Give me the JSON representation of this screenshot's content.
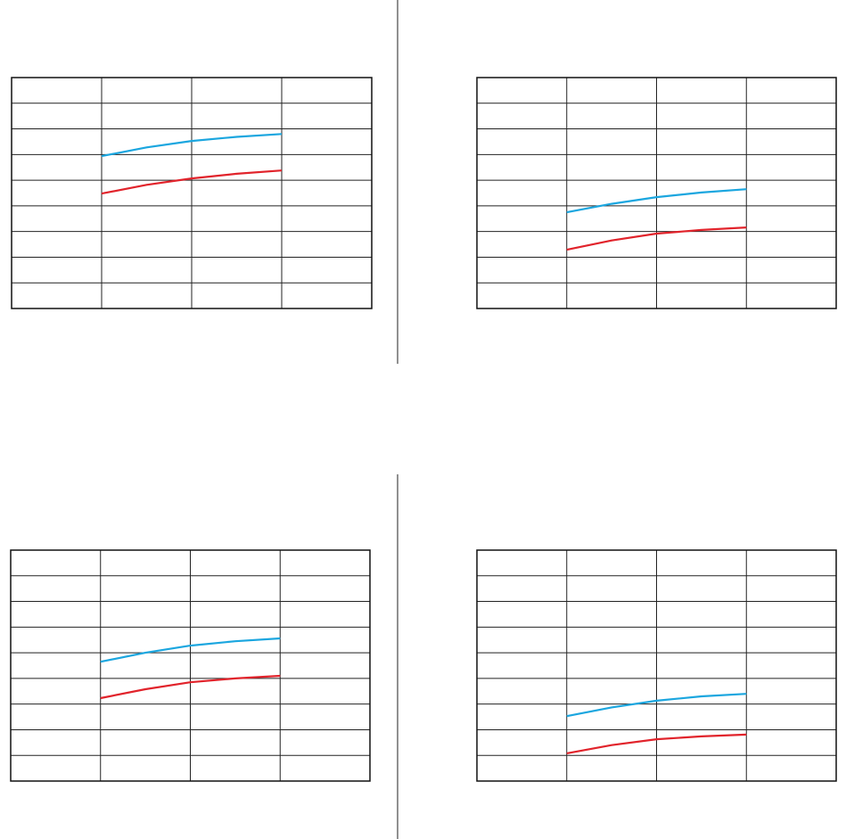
{
  "chart_data": [
    {
      "type": "line",
      "x": [
        1,
        1.5,
        2,
        2.5,
        3
      ],
      "xlim": [
        0,
        4
      ],
      "ylim": [
        0,
        9
      ],
      "xticks": [
        0,
        1,
        2,
        3,
        4
      ],
      "yticks": [
        0,
        1,
        2,
        3,
        4,
        5,
        6,
        7,
        8,
        9
      ],
      "grid": true,
      "series": [
        {
          "color": "#1ba6df",
          "values": [
            5.94,
            6.28,
            6.53,
            6.69,
            6.8
          ]
        },
        {
          "color": "#e1232b",
          "values": [
            4.48,
            4.82,
            5.07,
            5.25,
            5.38
          ]
        }
      ]
    },
    {
      "type": "line",
      "x": [
        1,
        1.5,
        2,
        2.5,
        3
      ],
      "xlim": [
        0,
        4
      ],
      "ylim": [
        0,
        9
      ],
      "xticks": [
        0,
        1,
        2,
        3,
        4
      ],
      "yticks": [
        0,
        1,
        2,
        3,
        4,
        5,
        6,
        7,
        8,
        9
      ],
      "grid": true,
      "series": [
        {
          "color": "#1ba6df",
          "values": [
            3.75,
            4.08,
            4.34,
            4.52,
            4.65
          ]
        },
        {
          "color": "#e1232b",
          "values": [
            2.29,
            2.65,
            2.92,
            3.06,
            3.16
          ]
        }
      ]
    },
    {
      "type": "line",
      "x": [
        1,
        1.5,
        2,
        2.5,
        3
      ],
      "xlim": [
        0,
        4
      ],
      "ylim": [
        0,
        9
      ],
      "xticks": [
        0,
        1,
        2,
        3,
        4
      ],
      "yticks": [
        0,
        1,
        2,
        3,
        4,
        5,
        6,
        7,
        8,
        9
      ],
      "grid": true,
      "series": [
        {
          "color": "#1ba6df",
          "values": [
            4.65,
            5.0,
            5.28,
            5.45,
            5.56
          ]
        },
        {
          "color": "#e1232b",
          "values": [
            3.23,
            3.58,
            3.85,
            4.0,
            4.1
          ]
        }
      ]
    },
    {
      "type": "line",
      "x": [
        1,
        1.5,
        2,
        2.5,
        3
      ],
      "xlim": [
        0,
        4
      ],
      "ylim": [
        0,
        9
      ],
      "xticks": [
        0,
        1,
        2,
        3,
        4
      ],
      "yticks": [
        0,
        1,
        2,
        3,
        4,
        5,
        6,
        7,
        8,
        9
      ],
      "grid": true,
      "series": [
        {
          "color": "#1ba6df",
          "values": [
            2.53,
            2.87,
            3.13,
            3.3,
            3.4
          ]
        },
        {
          "color": "#e1232b",
          "values": [
            1.08,
            1.4,
            1.63,
            1.74,
            1.81
          ]
        }
      ]
    }
  ]
}
